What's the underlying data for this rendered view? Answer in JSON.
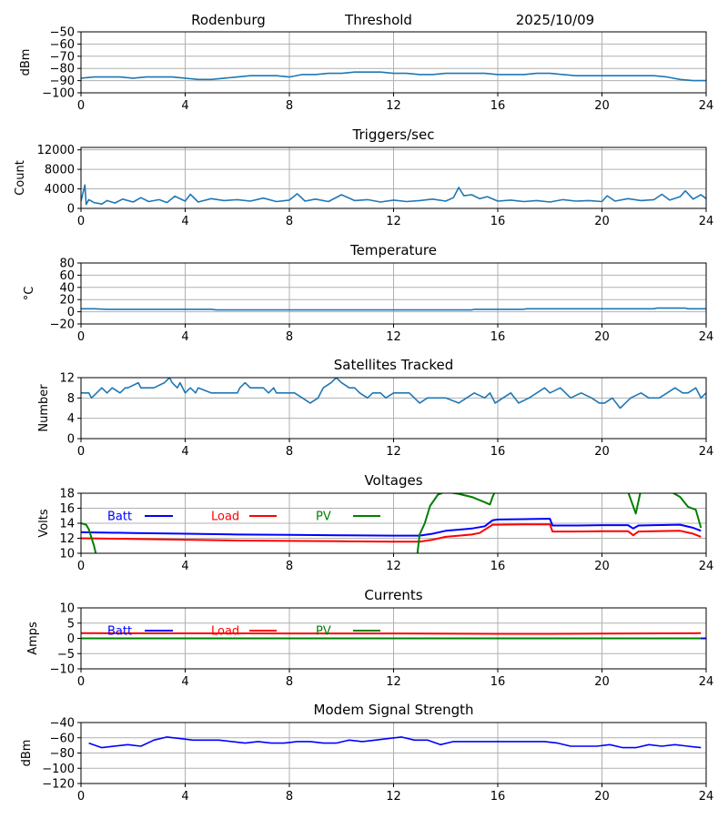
{
  "header": {
    "site": "Rodenburg",
    "label": "Threshold",
    "date": "2025/10/09"
  },
  "chart_data": [
    {
      "id": "threshold",
      "type": "line",
      "title": "",
      "ylabel": "dBm",
      "xlim": [
        0,
        24
      ],
      "ylim": [
        -100,
        -50
      ],
      "xticks": [
        0,
        4,
        8,
        12,
        16,
        20,
        24
      ],
      "yticks": [
        -100,
        -90,
        -80,
        -70,
        -60,
        -50
      ],
      "series": [
        {
          "name": "threshold",
          "color": "#1f77b4",
          "x": [
            0,
            0.5,
            1,
            1.5,
            2,
            2.5,
            3,
            3.5,
            4,
            4.5,
            5,
            5.5,
            6,
            6.5,
            7,
            7.5,
            8,
            8.5,
            9,
            9.5,
            10,
            10.5,
            11,
            11.5,
            12,
            12.5,
            13,
            13.5,
            14,
            14.5,
            15,
            15.5,
            16,
            16.5,
            17,
            17.5,
            18,
            18.5,
            19,
            19.5,
            20,
            20.5,
            21,
            21.5,
            22,
            22.5,
            23,
            23.5,
            24
          ],
          "y": [
            -88,
            -87,
            -87,
            -87,
            -88,
            -87,
            -87,
            -87,
            -88,
            -89,
            -89,
            -88,
            -87,
            -86,
            -86,
            -86,
            -87,
            -85,
            -85,
            -84,
            -84,
            -83,
            -83,
            -83,
            -84,
            -84,
            -85,
            -85,
            -84,
            -84,
            -84,
            -84,
            -85,
            -85,
            -85,
            -84,
            -84,
            -85,
            -86,
            -86,
            -86,
            -86,
            -86,
            -86,
            -86,
            -87,
            -89,
            -90,
            -90
          ]
        }
      ]
    },
    {
      "id": "triggers",
      "type": "line",
      "title": "Triggers/sec",
      "ylabel": "Count",
      "xlim": [
        0,
        24
      ],
      "ylim": [
        0,
        12500
      ],
      "xticks": [
        0,
        4,
        8,
        12,
        16,
        20,
        24
      ],
      "yticks": [
        0,
        4000,
        8000,
        12000
      ],
      "series": [
        {
          "name": "triggers",
          "color": "#1f77b4",
          "x": [
            0,
            0.15,
            0.2,
            0.3,
            0.5,
            0.8,
            1,
            1.3,
            1.6,
            2,
            2.3,
            2.6,
            3,
            3.3,
            3.6,
            4,
            4.2,
            4.5,
            5,
            5.5,
            6,
            6.5,
            7,
            7.5,
            8,
            8.3,
            8.6,
            9,
            9.5,
            10,
            10.5,
            11,
            11.5,
            12,
            12.5,
            13,
            13.5,
            14,
            14.3,
            14.5,
            14.7,
            15,
            15.3,
            15.6,
            16,
            16.5,
            17,
            17.5,
            18,
            18.5,
            19,
            19.5,
            20,
            20.2,
            20.5,
            21,
            21.5,
            22,
            22.3,
            22.6,
            23,
            23.2,
            23.5,
            23.8,
            24
          ],
          "y": [
            1500,
            4800,
            800,
            1800,
            1200,
            900,
            1600,
            1100,
            1900,
            1300,
            2200,
            1400,
            1800,
            1200,
            2500,
            1500,
            2900,
            1300,
            2000,
            1600,
            1800,
            1500,
            2100,
            1400,
            1700,
            3000,
            1500,
            1900,
            1400,
            2800,
            1600,
            1800,
            1300,
            1700,
            1400,
            1600,
            1900,
            1500,
            2200,
            4300,
            2600,
            2800,
            2000,
            2400,
            1500,
            1700,
            1400,
            1600,
            1300,
            1800,
            1500,
            1600,
            1400,
            2600,
            1500,
            2000,
            1600,
            1800,
            2900,
            1700,
            2400,
            3600,
            1900,
            2800,
            2000
          ]
        }
      ]
    },
    {
      "id": "temperature",
      "type": "line",
      "title": "Temperature",
      "ylabel": "°C",
      "xlim": [
        0,
        24
      ],
      "ylim": [
        -20,
        80
      ],
      "xticks": [
        0,
        4,
        8,
        12,
        16,
        20,
        24
      ],
      "yticks": [
        -20,
        0,
        20,
        40,
        60,
        80
      ],
      "series": [
        {
          "name": "temperature",
          "color": "#1f77b4",
          "x": [
            0,
            0.5,
            1,
            5,
            5.2,
            10,
            15,
            15.1,
            17,
            17.1,
            22,
            22.1,
            23.2,
            23.3,
            24
          ],
          "y": [
            5,
            5,
            4,
            4,
            3,
            3,
            3,
            4,
            4,
            5,
            5,
            6,
            6,
            5,
            5
          ]
        }
      ]
    },
    {
      "id": "satellites",
      "type": "line",
      "title": "Satellites Tracked",
      "ylabel": "Number",
      "xlim": [
        0,
        24
      ],
      "ylim": [
        0,
        12
      ],
      "xticks": [
        0,
        4,
        8,
        12,
        16,
        20,
        24
      ],
      "yticks": [
        0,
        4,
        8,
        12
      ],
      "series": [
        {
          "name": "satellites",
          "color": "#1f77b4",
          "x": [
            0,
            0.3,
            0.4,
            0.6,
            0.8,
            1,
            1.2,
            1.5,
            1.7,
            1.8,
            2.2,
            2.3,
            2.8,
            3.2,
            3.4,
            3.5,
            3.7,
            3.8,
            4.0,
            4.2,
            4.4,
            4.5,
            5,
            5.5,
            6,
            6.1,
            6.3,
            6.5,
            7,
            7.2,
            7.4,
            7.5,
            8,
            8.2,
            8.5,
            8.8,
            9.1,
            9.3,
            9.6,
            9.8,
            10,
            10.3,
            10.5,
            10.7,
            11,
            11.2,
            11.5,
            11.7,
            12,
            12.3,
            12.6,
            12.8,
            13,
            13.3,
            13.5,
            14,
            14.5,
            14.8,
            15.1,
            15.5,
            15.7,
            15.9,
            16.2,
            16.5,
            16.8,
            17.2,
            17.5,
            17.8,
            18,
            18.4,
            18.8,
            19.2,
            19.6,
            19.9,
            20.1,
            20.4,
            20.7,
            20.9,
            21.1,
            21.5,
            21.8,
            22.2,
            22.5,
            22.8,
            23.1,
            23.3,
            23.6,
            23.8,
            24
          ],
          "y": [
            9,
            9,
            8,
            9,
            10,
            9,
            10,
            9,
            10,
            10,
            11,
            10,
            10,
            11,
            12,
            11,
            10,
            11,
            9,
            10,
            9,
            10,
            9,
            9,
            9,
            10,
            11,
            10,
            10,
            9,
            10,
            9,
            9,
            9,
            8,
            7,
            8,
            10,
            11,
            12,
            11,
            10,
            10,
            9,
            8,
            9,
            9,
            8,
            9,
            9,
            9,
            8,
            7,
            8,
            8,
            8,
            7,
            8,
            9,
            8,
            9,
            7,
            8,
            9,
            7,
            8,
            9,
            10,
            9,
            10,
            8,
            9,
            8,
            7,
            7,
            8,
            6,
            7,
            8,
            9,
            8,
            8,
            9,
            10,
            9,
            9,
            10,
            8,
            9
          ]
        }
      ]
    },
    {
      "id": "voltages",
      "type": "line",
      "title": "Voltages",
      "ylabel": "Volts",
      "xlim": [
        0,
        24
      ],
      "ylim": [
        10,
        18
      ],
      "xticks": [
        0,
        4,
        8,
        12,
        16,
        20,
        24
      ],
      "yticks": [
        10,
        12,
        14,
        16,
        18
      ],
      "legend": [
        "Batt",
        "Load",
        "PV"
      ],
      "series": [
        {
          "name": "Batt",
          "color": "#0000ff",
          "x": [
            0,
            2,
            4,
            6,
            8,
            10,
            12,
            13,
            13.5,
            14,
            15,
            15.5,
            15.8,
            16,
            17,
            18,
            18.1,
            19,
            20,
            21,
            21.2,
            21.4,
            22,
            23,
            23.5,
            23.8
          ],
          "y": [
            12.8,
            12.7,
            12.6,
            12.5,
            12.45,
            12.4,
            12.35,
            12.35,
            12.6,
            13.0,
            13.3,
            13.6,
            14.4,
            14.5,
            14.55,
            14.6,
            13.7,
            13.7,
            13.75,
            13.75,
            13.3,
            13.7,
            13.75,
            13.8,
            13.4,
            13.0
          ]
        },
        {
          "name": "Load",
          "color": "#ff0000",
          "x": [
            0,
            2,
            4,
            6,
            8,
            10,
            12,
            13,
            13.5,
            14,
            15,
            15.3,
            15.8,
            16,
            17,
            18,
            18.1,
            19,
            20,
            21,
            21.2,
            21.4,
            22,
            23,
            23.5,
            23.8
          ],
          "y": [
            12.0,
            11.9,
            11.8,
            11.7,
            11.65,
            11.6,
            11.55,
            11.55,
            11.8,
            12.2,
            12.5,
            12.7,
            13.8,
            13.8,
            13.85,
            13.85,
            12.9,
            12.9,
            12.95,
            12.95,
            12.4,
            12.9,
            12.95,
            13.0,
            12.6,
            12.2
          ]
        },
        {
          "name": "PV",
          "color": "#008000",
          "x": [
            0,
            0.2,
            0.3,
            0.5,
            0.6,
            12.9,
            13.0,
            13.2,
            13.4,
            13.7,
            14,
            14.5,
            15,
            15.5,
            15.7,
            15.8,
            16,
            20.5,
            21,
            21.3,
            21.5,
            21.7,
            22,
            22.5,
            23,
            23.3,
            23.6,
            23.8
          ],
          "y": [
            14,
            13.8,
            13.2,
            11,
            9.5,
            9.5,
            12.5,
            14,
            16.3,
            17.8,
            18.2,
            17.9,
            17.5,
            16.8,
            16.5,
            17.5,
            19,
            19,
            18.2,
            15.3,
            18.5,
            19,
            19,
            18.5,
            17.5,
            16.2,
            15.8,
            13.4
          ]
        }
      ]
    },
    {
      "id": "currents",
      "type": "line",
      "title": "Currents",
      "ylabel": "Amps",
      "xlim": [
        0,
        24
      ],
      "ylim": [
        -10,
        10
      ],
      "xticks": [
        0,
        4,
        8,
        12,
        16,
        20,
        24
      ],
      "yticks": [
        -10,
        -5,
        0,
        5,
        10
      ],
      "legend": [
        "Batt",
        "Load",
        "PV"
      ],
      "series": [
        {
          "name": "Batt",
          "color": "#0000ff",
          "x": [
            0,
            24
          ],
          "y": [
            0,
            0
          ]
        },
        {
          "name": "Load",
          "color": "#ff0000",
          "x": [
            0,
            4,
            8,
            12,
            16,
            18,
            20,
            23.8
          ],
          "y": [
            1.7,
            1.65,
            1.6,
            1.6,
            1.5,
            1.5,
            1.55,
            1.7
          ]
        },
        {
          "name": "PV",
          "color": "#008000",
          "x": [
            0,
            23.8
          ],
          "y": [
            0,
            0
          ]
        }
      ]
    },
    {
      "id": "modem",
      "type": "line",
      "title": "Modem Signal Strength",
      "ylabel": "dBm",
      "xlim": [
        0,
        24
      ],
      "ylim": [
        -120,
        -40
      ],
      "xticks": [
        0,
        4,
        8,
        12,
        16,
        20,
        24
      ],
      "yticks": [
        -120,
        -100,
        -80,
        -60,
        -40
      ],
      "series": [
        {
          "name": "modem",
          "color": "#0000ff",
          "x": [
            0.3,
            0.8,
            1.8,
            2.3,
            2.8,
            3.3,
            3.8,
            4.3,
            5.3,
            5.8,
            6.3,
            6.8,
            7.3,
            7.8,
            8.3,
            8.8,
            9.3,
            9.8,
            10.3,
            10.8,
            11.3,
            11.8,
            12.3,
            12.8,
            13.3,
            13.8,
            14.3,
            14.8,
            15.3,
            15.8,
            16.3,
            16.8,
            17.3,
            17.8,
            18.3,
            18.8,
            19.3,
            19.8,
            20.3,
            20.8,
            21.3,
            21.8,
            22.3,
            22.8,
            23.3,
            23.8
          ],
          "y": [
            -67,
            -73,
            -69,
            -71,
            -63,
            -59,
            -61,
            -63,
            -63,
            -65,
            -67,
            -65,
            -67,
            -67,
            -65,
            -65,
            -67,
            -67,
            -63,
            -65,
            -63,
            -61,
            -59,
            -63,
            -63,
            -69,
            -65,
            -65,
            -65,
            -65,
            -65,
            -65,
            -65,
            -65,
            -67,
            -71,
            -71,
            -71,
            -69,
            -73,
            -73,
            -69,
            -71,
            -69,
            -71,
            -73
          ]
        }
      ]
    }
  ]
}
